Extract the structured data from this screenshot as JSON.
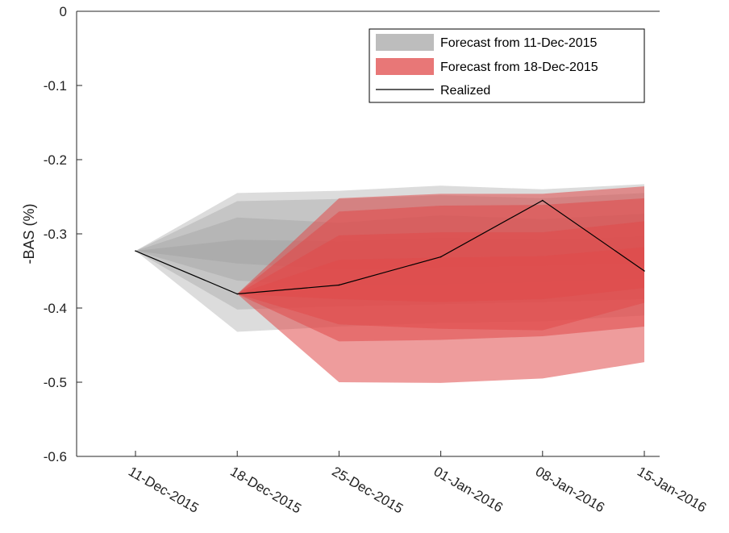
{
  "chart_data": {
    "type": "area",
    "ylabel": "-BAS (%)",
    "ylim": [
      -0.6,
      0
    ],
    "yticks": [
      0,
      -0.1,
      -0.2,
      -0.3,
      -0.4,
      -0.5,
      -0.6
    ],
    "ytick_labels": [
      "0",
      "-0.1",
      "-0.2",
      "-0.3",
      "-0.4",
      "-0.5",
      "-0.6"
    ],
    "categories": [
      "11-Dec-2015",
      "18-Dec-2015",
      "25-Dec-2015",
      "01-Jan-2016",
      "08-Jan-2016",
      "15-Jan-2016"
    ],
    "legend_position": "top-right",
    "series": [
      {
        "name": "Forecast from 11-Dec-2015",
        "color": "#9a9a9a",
        "type": "fan",
        "x_index": [
          0,
          1,
          2,
          3,
          4,
          5
        ],
        "bands": [
          {
            "upper": [
              -0.323,
              -0.245,
              -0.242,
              -0.235,
              -0.24,
              -0.233
            ],
            "lower": [
              -0.323,
              -0.432,
              -0.425,
              -0.42,
              -0.418,
              -0.41
            ]
          },
          {
            "upper": [
              -0.323,
              -0.256,
              -0.253,
              -0.248,
              -0.252,
              -0.245
            ],
            "lower": [
              -0.323,
              -0.402,
              -0.398,
              -0.395,
              -0.392,
              -0.388
            ]
          },
          {
            "upper": [
              -0.323,
              -0.278,
              -0.285,
              -0.275,
              -0.28,
              -0.273
            ],
            "lower": [
              -0.323,
              -0.363,
              -0.37,
              -0.368,
              -0.365,
              -0.36
            ]
          },
          {
            "upper": [
              -0.323,
              -0.308,
              -0.31,
              -0.305,
              -0.308,
              -0.303
            ],
            "lower": [
              -0.323,
              -0.34,
              -0.348,
              -0.345,
              -0.343,
              -0.34
            ]
          }
        ]
      },
      {
        "name": "Forecast from 18-Dec-2015",
        "color": "#e04a4a",
        "type": "fan",
        "x_index": [
          1,
          2,
          3,
          4,
          5
        ],
        "bands": [
          {
            "upper": [
              -0.381,
              -0.252,
              -0.246,
              -0.246,
              -0.236
            ],
            "lower": [
              -0.381,
              -0.5,
              -0.501,
              -0.495,
              -0.473
            ]
          },
          {
            "upper": [
              -0.381,
              -0.27,
              -0.262,
              -0.261,
              -0.252
            ],
            "lower": [
              -0.381,
              -0.445,
              -0.443,
              -0.438,
              -0.425
            ]
          },
          {
            "upper": [
              -0.381,
              -0.302,
              -0.298,
              -0.298,
              -0.283
            ],
            "lower": [
              -0.381,
              -0.422,
              -0.428,
              -0.43,
              -0.393
            ]
          },
          {
            "upper": [
              -0.381,
              -0.335,
              -0.332,
              -0.33,
              -0.318
            ],
            "lower": [
              -0.381,
              -0.388,
              -0.392,
              -0.388,
              -0.373
            ]
          }
        ]
      },
      {
        "name": "Realized",
        "color": "#000000",
        "type": "line",
        "x_index": [
          0,
          1,
          2,
          3,
          4,
          5
        ],
        "values": [
          -0.323,
          -0.381,
          -0.369,
          -0.331,
          -0.255,
          -0.35
        ]
      }
    ]
  }
}
